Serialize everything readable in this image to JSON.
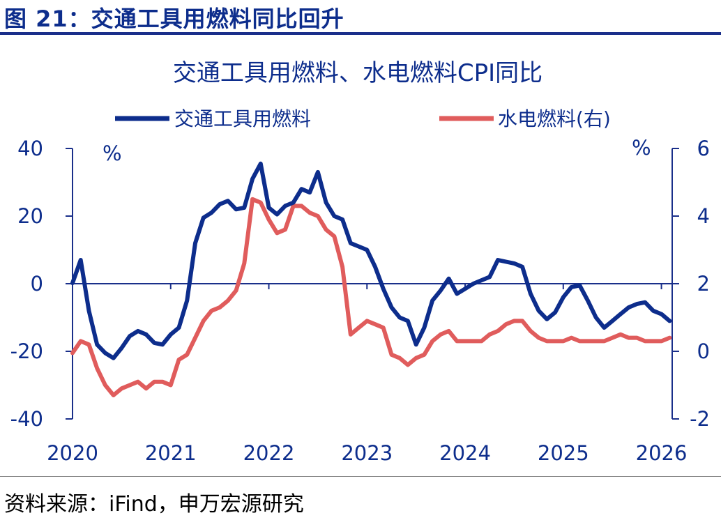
{
  "figure_title": "图 21：交通工具用燃料同比回升",
  "source": "资料来源：iFind，申万宏源研究",
  "colors": {
    "primary": "#0d2d8c",
    "secondary": "#e05c5c",
    "axis": "#1a2f8a"
  },
  "chart_data": {
    "type": "line",
    "title": "交通工具用燃料、水电燃料CPI同比",
    "ylabel_left": "%",
    "ylabel_right": "%",
    "ylim_left": [
      -40,
      40
    ],
    "ylim_right": [
      -2,
      6
    ],
    "yticks_left": [
      "40",
      "20",
      "0",
      "-20",
      "-40"
    ],
    "yticks_right": [
      "6",
      "4",
      "2",
      "0",
      "-2"
    ],
    "xticks": [
      "2020",
      "2021",
      "2022",
      "2023",
      "2024",
      "2025",
      "2026"
    ],
    "x_start": "2020-01",
    "grid": false,
    "legend": "top",
    "series": [
      {
        "name": "交通工具用燃料",
        "axis": "left",
        "values": [
          0.2,
          7,
          -8,
          -18,
          -20.5,
          -22,
          -19,
          -15.5,
          -14,
          -15,
          -17.5,
          -18,
          -15,
          -13,
          -5,
          12,
          19.5,
          21,
          23.5,
          24.5,
          22,
          22.5,
          31,
          35.5,
          22.5,
          20.5,
          23,
          24,
          28,
          27,
          33,
          24,
          20,
          19,
          12,
          11,
          10,
          5,
          -1.5,
          -7,
          -10,
          -11,
          -18,
          -13,
          -5,
          -2,
          1.5,
          -3,
          -1.5,
          0,
          1,
          2,
          7,
          6.5,
          6,
          5,
          -3,
          -8,
          -10.5,
          -8.5,
          -4,
          -1,
          -0.5,
          -5,
          -10,
          -13,
          -11,
          -9,
          -7,
          -6,
          -5.5,
          -8,
          -9,
          -11
        ]
      },
      {
        "name": "水电燃料(右)",
        "axis": "right",
        "values": [
          -0.05,
          0.3,
          0.2,
          -0.5,
          -1.0,
          -1.3,
          -1.1,
          -1.0,
          -0.9,
          -1.1,
          -0.9,
          -0.9,
          -1.0,
          -0.25,
          -0.1,
          0.4,
          0.9,
          1.2,
          1.3,
          1.5,
          1.8,
          2.6,
          4.5,
          4.4,
          3.9,
          3.5,
          3.6,
          4.3,
          4.3,
          4.1,
          4.0,
          3.6,
          3.4,
          2.5,
          0.5,
          0.7,
          0.9,
          0.8,
          0.7,
          -0.1,
          -0.2,
          -0.4,
          -0.2,
          -0.1,
          0.3,
          0.5,
          0.6,
          0.3,
          0.3,
          0.3,
          0.3,
          0.5,
          0.6,
          0.8,
          0.9,
          0.9,
          0.6,
          0.4,
          0.3,
          0.3,
          0.3,
          0.4,
          0.3,
          0.3,
          0.3,
          0.3,
          0.4,
          0.5,
          0.4,
          0.4,
          0.3,
          0.3,
          0.3,
          0.4
        ]
      }
    ]
  }
}
